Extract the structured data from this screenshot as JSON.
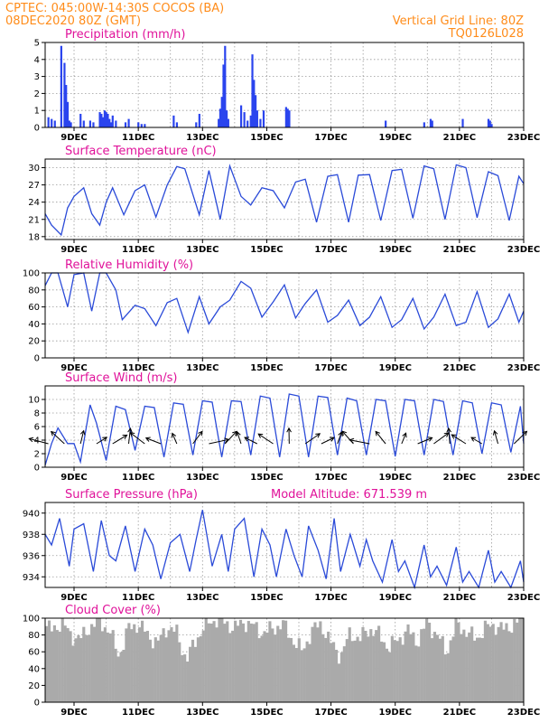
{
  "header": {
    "left_line1": "CPTEC:   045:00W-14:30S   COCOS (BA)",
    "left_line2": "08DEC2020 80Z (GMT)",
    "right_line1": "Vertical Grid Line: 80Z",
    "right_line2": "TQ0126L028"
  },
  "colors": {
    "header": "#ff8c1a",
    "title": "#e0129a",
    "series": "#2a4ad8",
    "bars": "#2a44ee",
    "cloud": "#aaaaaa"
  },
  "x_axis": {
    "start": "08DEC2020 80Z",
    "end": "23DEC",
    "tick_labels": [
      "9DEC",
      "11DEC",
      "13DEC",
      "15DEC",
      "17DEC",
      "19DEC",
      "21DEC",
      "23DEC"
    ],
    "tick_days": [
      9,
      11,
      13,
      15,
      17,
      19,
      21,
      23
    ],
    "range_days": [
      8.1,
      23.0
    ]
  },
  "chart_data": [
    {
      "id": "precip",
      "type": "bar",
      "title": "Precipitation  (mm/h)",
      "ylim": [
        0,
        5
      ],
      "yticks": [
        0,
        1,
        2,
        3,
        4,
        5
      ],
      "x": [
        8.2,
        8.3,
        8.4,
        8.6,
        8.7,
        8.75,
        8.8,
        8.85,
        8.9,
        9.2,
        9.3,
        9.5,
        9.6,
        9.8,
        9.85,
        9.9,
        9.95,
        10.0,
        10.05,
        10.1,
        10.15,
        10.2,
        10.3,
        10.6,
        10.7,
        11.0,
        11.1,
        11.2,
        12.1,
        12.2,
        12.8,
        12.9,
        13.5,
        13.55,
        13.6,
        13.65,
        13.7,
        13.75,
        13.8,
        14.2,
        14.3,
        14.4,
        14.5,
        14.55,
        14.6,
        14.65,
        14.7,
        14.8,
        14.9,
        15.6,
        15.65,
        15.7,
        18.7,
        19.9,
        20.1,
        20.15,
        21.1,
        21.9,
        21.95,
        22.0
      ],
      "values": [
        0.6,
        0.5,
        0.4,
        4.8,
        3.8,
        2.5,
        1.5,
        0.4,
        0.3,
        0.8,
        0.4,
        0.4,
        0.3,
        0.9,
        0.8,
        0.6,
        1.0,
        0.9,
        0.8,
        0.5,
        0.3,
        0.7,
        0.4,
        0.3,
        0.5,
        0.3,
        0.2,
        0.2,
        0.7,
        0.3,
        0.3,
        0.8,
        0.5,
        1.1,
        1.8,
        3.7,
        4.8,
        1.0,
        0.5,
        1.3,
        0.9,
        0.4,
        0.7,
        4.3,
        2.8,
        1.9,
        1.0,
        0.5,
        1.0,
        1.2,
        1.1,
        1.0,
        0.4,
        0.3,
        0.5,
        0.4,
        0.5,
        0.5,
        0.4,
        0.2
      ]
    },
    {
      "id": "temp",
      "type": "line",
      "title": "Surface Temperature (nC)",
      "ylim": [
        17.5,
        31.5
      ],
      "yticks": [
        18,
        21,
        24,
        27,
        30
      ],
      "x": [
        8.1,
        8.3,
        8.6,
        8.8,
        9.0,
        9.3,
        9.55,
        9.8,
        10.0,
        10.2,
        10.55,
        10.9,
        11.2,
        11.55,
        11.9,
        12.2,
        12.45,
        12.9,
        13.2,
        13.55,
        13.85,
        14.2,
        14.5,
        14.85,
        15.2,
        15.55,
        15.9,
        16.2,
        16.55,
        16.9,
        17.2,
        17.55,
        17.85,
        18.2,
        18.55,
        18.9,
        19.2,
        19.55,
        19.9,
        20.2,
        20.55,
        20.9,
        21.2,
        21.55,
        21.9,
        22.2,
        22.55,
        22.85,
        23.0
      ],
      "values": [
        22,
        20,
        18.3,
        23,
        25,
        26.5,
        22,
        20,
        24,
        26.5,
        21.8,
        26,
        27,
        21.4,
        27,
        30.2,
        29.8,
        21.8,
        29.5,
        21,
        30.3,
        25,
        23.5,
        26.5,
        26,
        23,
        27.5,
        28,
        20.5,
        28.5,
        28.8,
        20.5,
        28.7,
        28.8,
        20.8,
        29.5,
        29.7,
        21.2,
        30.3,
        29.8,
        21,
        30.5,
        30,
        21.3,
        29.3,
        28.6,
        20.8,
        28.5,
        27.2
      ]
    },
    {
      "id": "rh",
      "type": "line",
      "title": "Relative Humidity  (%)",
      "ylim": [
        0,
        100
      ],
      "yticks": [
        0,
        20,
        40,
        60,
        80,
        100
      ],
      "x": [
        8.1,
        8.3,
        8.5,
        8.8,
        9.0,
        9.3,
        9.55,
        9.8,
        10.0,
        10.3,
        10.5,
        10.9,
        11.2,
        11.55,
        11.9,
        12.2,
        12.55,
        12.9,
        13.2,
        13.55,
        13.85,
        14.2,
        14.5,
        14.85,
        15.2,
        15.55,
        15.9,
        16.2,
        16.55,
        16.9,
        17.2,
        17.55,
        17.9,
        18.2,
        18.55,
        18.9,
        19.2,
        19.55,
        19.9,
        20.2,
        20.55,
        20.9,
        21.2,
        21.55,
        21.9,
        22.2,
        22.55,
        22.85,
        23.0
      ],
      "values": [
        85,
        100,
        100,
        60,
        98,
        100,
        55,
        100,
        100,
        80,
        45,
        62,
        58,
        38,
        65,
        70,
        30,
        72,
        40,
        60,
        68,
        90,
        82,
        48,
        66,
        86,
        47,
        64,
        80,
        42,
        50,
        68,
        38,
        48,
        72,
        36,
        45,
        70,
        34,
        48,
        75,
        38,
        42,
        78,
        36,
        46,
        75,
        42,
        55
      ]
    },
    {
      "id": "wind",
      "type": "line",
      "title": "Surface Wind  (m/s)",
      "ylim": [
        0,
        12
      ],
      "yticks": [
        0,
        2,
        4,
        6,
        8,
        10
      ],
      "x": [
        8.1,
        8.3,
        8.5,
        8.8,
        9.0,
        9.2,
        9.5,
        9.7,
        10.0,
        10.3,
        10.6,
        10.9,
        11.2,
        11.5,
        11.8,
        12.1,
        12.4,
        12.7,
        13.0,
        13.3,
        13.6,
        13.9,
        14.2,
        14.5,
        14.8,
        15.1,
        15.4,
        15.7,
        16.0,
        16.3,
        16.6,
        16.9,
        17.2,
        17.5,
        17.8,
        18.1,
        18.4,
        18.7,
        19.0,
        19.3,
        19.6,
        19.9,
        20.2,
        20.5,
        20.8,
        21.1,
        21.4,
        21.7,
        22.0,
        22.3,
        22.6,
        22.9,
        23.0
      ],
      "values": [
        0.3,
        3.5,
        5.8,
        3.5,
        3.5,
        0.8,
        9.2,
        6.5,
        1.0,
        9.0,
        8.5,
        2.5,
        9.0,
        8.8,
        1.5,
        9.5,
        9.3,
        1.8,
        9.8,
        9.6,
        1.5,
        9.8,
        9.7,
        1.8,
        10.5,
        10.2,
        1.5,
        10.8,
        10.5,
        1.5,
        10.5,
        10.3,
        1.8,
        10.2,
        9.8,
        1.8,
        10.0,
        9.8,
        1.6,
        10.0,
        9.8,
        1.8,
        10.0,
        9.7,
        1.8,
        9.8,
        9.5,
        2.0,
        9.5,
        9.2,
        2.2,
        9.0,
        3.5
      ]
    },
    {
      "id": "pressure",
      "type": "line",
      "title": "Surface Pressure (hPa)",
      "annotation": "Model Altitude: 671.539  m",
      "ylim": [
        933,
        941
      ],
      "yticks": [
        934,
        936,
        938,
        940
      ],
      "x": [
        8.1,
        8.3,
        8.55,
        8.85,
        9.0,
        9.3,
        9.6,
        9.85,
        10.1,
        10.3,
        10.6,
        10.9,
        11.2,
        11.45,
        11.7,
        12.0,
        12.3,
        12.6,
        12.8,
        13.0,
        13.3,
        13.6,
        13.8,
        14.0,
        14.3,
        14.6,
        14.85,
        15.1,
        15.3,
        15.6,
        15.85,
        16.1,
        16.3,
        16.6,
        16.85,
        17.1,
        17.3,
        17.6,
        17.9,
        18.1,
        18.3,
        18.6,
        18.9,
        19.1,
        19.3,
        19.6,
        19.9,
        20.1,
        20.3,
        20.6,
        20.9,
        21.1,
        21.3,
        21.6,
        21.9,
        22.1,
        22.3,
        22.6,
        22.9,
        23.0
      ],
      "values": [
        938,
        937,
        939.5,
        935,
        938.5,
        939,
        934.5,
        939.3,
        936,
        935.5,
        938.8,
        934.5,
        938.5,
        937,
        933.8,
        937.2,
        938,
        934.5,
        937.5,
        940.3,
        935,
        938,
        934.5,
        938.5,
        939.5,
        934,
        938.5,
        937,
        934,
        938.5,
        936,
        934,
        938.8,
        936.5,
        933.8,
        939.5,
        934.5,
        938,
        935,
        937.5,
        935.5,
        933.5,
        937.5,
        934.5,
        935.5,
        933,
        937,
        934,
        935,
        933.2,
        936.8,
        933.5,
        934.5,
        933,
        936.5,
        933.5,
        934.5,
        933,
        935.5,
        933.5
      ]
    },
    {
      "id": "cloud",
      "type": "area",
      "title": "Cloud Cover  (%)",
      "ylim": [
        0,
        100
      ],
      "yticks": [
        0,
        20,
        40,
        60,
        80,
        100
      ],
      "x": [
        8.1,
        8.3,
        8.6,
        8.9,
        9.2,
        9.5,
        9.8,
        10.1,
        10.4,
        10.7,
        11.0,
        11.3,
        11.6,
        11.9,
        12.2,
        12.5,
        12.8,
        13.1,
        13.4,
        13.7,
        14.0,
        14.3,
        14.6,
        14.9,
        15.2,
        15.5,
        15.8,
        16.1,
        16.4,
        16.7,
        17.0,
        17.3,
        17.6,
        17.9,
        18.2,
        18.5,
        18.8,
        19.1,
        19.4,
        19.7,
        20.0,
        20.3,
        20.6,
        20.9,
        21.2,
        21.5,
        21.8,
        22.1,
        22.4,
        22.7,
        23.0
      ],
      "values": [
        92,
        85,
        95,
        80,
        75,
        90,
        96,
        85,
        55,
        88,
        93,
        80,
        70,
        90,
        82,
        50,
        75,
        92,
        99,
        95,
        88,
        96,
        90,
        82,
        88,
        93,
        75,
        60,
        85,
        93,
        70,
        55,
        82,
        75,
        88,
        80,
        65,
        75,
        85,
        72,
        95,
        80,
        60,
        92,
        85,
        75,
        88,
        92,
        86,
        94,
        96
      ]
    }
  ]
}
